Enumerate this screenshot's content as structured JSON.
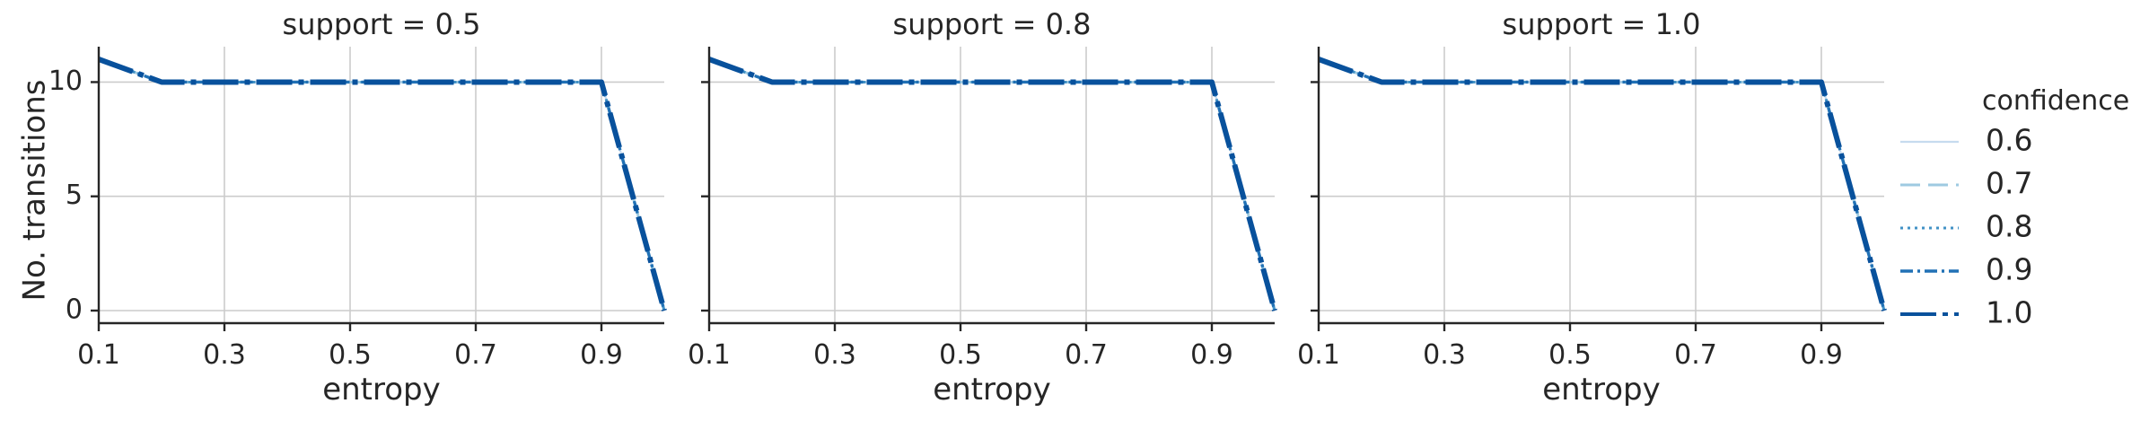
{
  "chart_data": {
    "type": "line",
    "xlabel": "entropy",
    "ylabel": "No. transitions",
    "xlim": [
      0.1,
      1.0
    ],
    "ylim": [
      -0.55,
      11.55
    ],
    "xticks": [
      "0.1",
      "0.3",
      "0.5",
      "0.7",
      "0.9"
    ],
    "yticks": [
      "0",
      "5",
      "10"
    ],
    "grid": true,
    "legend": {
      "title": "confidence",
      "placement": "right",
      "entries": [
        "0.6",
        "0.7",
        "0.8",
        "0.9",
        "1.0"
      ]
    },
    "series_colors": {
      "0.6": "#c6dbef",
      "0.7": "#9ecae1",
      "0.8": "#4292c6",
      "0.9": "#2171b5",
      "1.0": "#08519c"
    },
    "x": [
      0.1,
      0.2,
      0.3,
      0.4,
      0.5,
      0.6,
      0.7,
      0.8,
      0.9,
      1.0
    ],
    "panels": [
      {
        "title": "support = 0.5",
        "series": [
          {
            "name": "0.6",
            "values": [
              11,
              10,
              10,
              10,
              10,
              10,
              10,
              10,
              10,
              0
            ]
          },
          {
            "name": "0.7",
            "values": [
              11,
              10,
              10,
              10,
              10,
              10,
              10,
              10,
              10,
              0
            ]
          },
          {
            "name": "0.8",
            "values": [
              11,
              10,
              10,
              10,
              10,
              10,
              10,
              10,
              10,
              0
            ]
          },
          {
            "name": "0.9",
            "values": [
              11,
              10,
              10,
              10,
              10,
              10,
              10,
              10,
              10,
              0
            ]
          },
          {
            "name": "1.0",
            "values": [
              11,
              10,
              10,
              10,
              10,
              10,
              10,
              10,
              10,
              0
            ]
          }
        ]
      },
      {
        "title": "support = 0.8",
        "series": [
          {
            "name": "0.6",
            "values": [
              11,
              10,
              10,
              10,
              10,
              10,
              10,
              10,
              10,
              0
            ]
          },
          {
            "name": "0.7",
            "values": [
              11,
              10,
              10,
              10,
              10,
              10,
              10,
              10,
              10,
              0
            ]
          },
          {
            "name": "0.8",
            "values": [
              11,
              10,
              10,
              10,
              10,
              10,
              10,
              10,
              10,
              0
            ]
          },
          {
            "name": "0.9",
            "values": [
              11,
              10,
              10,
              10,
              10,
              10,
              10,
              10,
              10,
              0
            ]
          },
          {
            "name": "1.0",
            "values": [
              11,
              10,
              10,
              10,
              10,
              10,
              10,
              10,
              10,
              0
            ]
          }
        ]
      },
      {
        "title": "support = 1.0",
        "series": [
          {
            "name": "0.6",
            "values": [
              11,
              10,
              10,
              10,
              10,
              10,
              10,
              10,
              10,
              0
            ]
          },
          {
            "name": "0.7",
            "values": [
              11,
              10,
              10,
              10,
              10,
              10,
              10,
              10,
              10,
              0
            ]
          },
          {
            "name": "0.8",
            "values": [
              11,
              10,
              10,
              10,
              10,
              10,
              10,
              10,
              10,
              0
            ]
          },
          {
            "name": "0.9",
            "values": [
              11,
              10,
              10,
              10,
              10,
              10,
              10,
              10,
              10,
              0
            ]
          },
          {
            "name": "1.0",
            "values": [
              11,
              10,
              10,
              10,
              10,
              10,
              10,
              10,
              10,
              0
            ]
          }
        ]
      }
    ]
  }
}
